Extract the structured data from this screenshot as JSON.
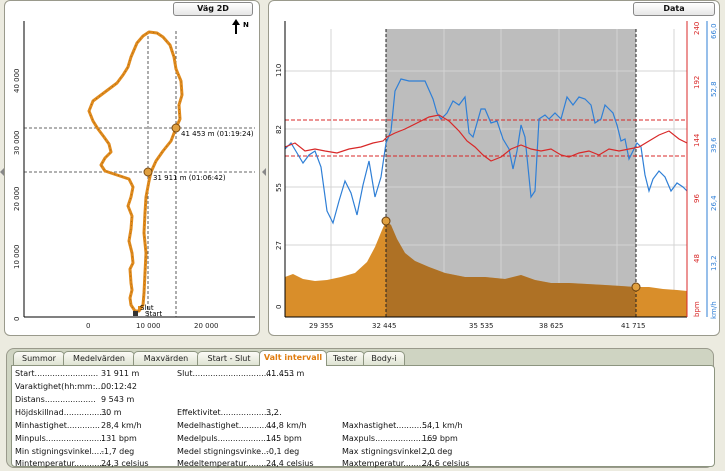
{
  "map_panel": {
    "title": "Väg 2D",
    "north": "N",
    "y_ticks": [
      "40 000",
      "30 000",
      "20 000",
      "10 000",
      "0"
    ],
    "x_ticks": [
      "0",
      "10 000",
      "20 000"
    ],
    "marker_1": "41 453 m (01:19:24)",
    "marker_2": "31 911 m (01:06:42)",
    "slut": "Slut",
    "start": "Start"
  },
  "data_panel": {
    "title": "Data",
    "left_ticks": [
      "110",
      "82",
      "55",
      "27",
      "0"
    ],
    "bpm_ticks": [
      "240",
      "192",
      "144",
      "96",
      "48"
    ],
    "kmh_ticks": [
      "66,0",
      "52,8",
      "39,6",
      "26,4",
      "13,2"
    ],
    "x_ticks": [
      "29 355",
      "32 445",
      "35 535",
      "38 625",
      "41 715"
    ],
    "bpm_unit": "bpm",
    "kmh_unit": "km/h"
  },
  "colors": {
    "elevation": "#d98e2a",
    "selection": "#bdbdbd",
    "heart_rate": "#d82828",
    "speed": "#2f7fd6",
    "route": "#e08a1c",
    "active_tab": "#e07d10"
  },
  "tabs": [
    "Summor",
    "Medelvärden",
    "Maxvärden",
    "Start - Slut",
    "Valt intervall",
    "Tester",
    "Body-i"
  ],
  "active_tab": "Valt intervall",
  "stats": [
    {
      "label": "Start",
      "value": "31 911 m"
    },
    {
      "label": "Slut",
      "value": "41 453 m"
    },
    {
      "label": "Varaktighet(hh:mm:...",
      "value": "00:12:42"
    },
    {
      "label": "Distans",
      "value": "9 543 m"
    },
    {
      "label": "Höjdskillnad",
      "value": "30 m"
    },
    {
      "label": "Effektivitet",
      "value": "3,2"
    },
    {
      "label": "Minhastighet",
      "value": "28,4 km/h"
    },
    {
      "label": "Medelhastighet",
      "value": "44,8 km/h"
    },
    {
      "label": "Maxhastighet",
      "value": "54,1 km/h"
    },
    {
      "label": "Minpuls",
      "value": "131 bpm"
    },
    {
      "label": "Medelpuls",
      "value": "145 bpm"
    },
    {
      "label": "Maxpuls",
      "value": "169 bpm"
    },
    {
      "label": "Min stigningsvinkel",
      "value": "-1,7 deg"
    },
    {
      "label": "Medel stigningsvinke...",
      "value": "-0,1 deg"
    },
    {
      "label": "Max stigningsvinkel",
      "value": "2,0 deg"
    },
    {
      "label": "Mintemperatur",
      "value": "24,3 celsius"
    },
    {
      "label": "Medeltemperatur",
      "value": "24,4 celsius"
    },
    {
      "label": "Maxtemperatur",
      "value": "24,6 celsius"
    }
  ]
}
